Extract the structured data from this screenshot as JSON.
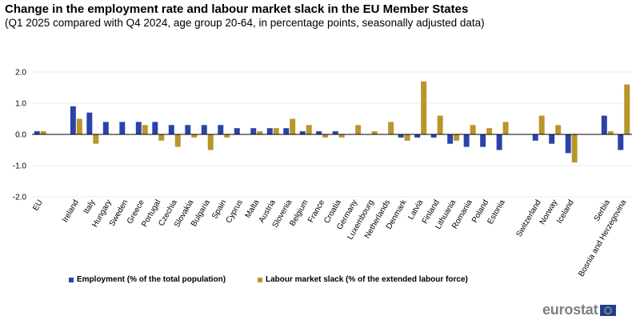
{
  "title": "Change in the employment rate and labour market slack in the EU Member States",
  "subtitle": "(Q1 2025 compared with Q4 2024, age group 20-64, in percentage points, seasonally adjusted data)",
  "logo": {
    "text": "eurostat",
    "flag_icon": "eu-flag-icon"
  },
  "colors": {
    "employment": "#2a43a8",
    "slack": "#b8962a",
    "grid": "#d9d9d9",
    "axis": "#000000",
    "flag": "#1f3f9a",
    "stars": "#ffd200"
  },
  "legend": [
    {
      "label": "Employment (% of the total population)",
      "color": "#2a43a8"
    },
    {
      "label": "Labour market slack (% of the extended labour force)",
      "color": "#b8962a"
    }
  ],
  "chart_data": {
    "type": "bar",
    "title": "Change in the employment rate and labour market slack in the EU Member States",
    "ylim": [
      -2.0,
      2.0
    ],
    "yticks": [
      2.0,
      1.0,
      0.0,
      -1.0,
      -2.0
    ],
    "ytick_labels": [
      "2.0",
      "1.0",
      "0.0",
      "-1.0",
      "-2.0"
    ],
    "grid": true,
    "legend_position": "bottom",
    "categories": [
      "EU",
      "Ireland",
      "Italy",
      "Hungary",
      "Sweden",
      "Greece",
      "Portugal",
      "Czechia",
      "Slovakia",
      "Bulgaria",
      "Spain",
      "Cyprus",
      "Malta",
      "Austria",
      "Slovenia",
      "Belgium",
      "France",
      "Croatia",
      "Germany",
      "Luxembourg",
      "Netherlands",
      "Denmark",
      "Latvia",
      "Finland",
      "Lithuania",
      "Romania",
      "Poland",
      "Estonia",
      "Switzerland",
      "Norway",
      "Iceland",
      "Serbia",
      "Bosnia and Herzegovina"
    ],
    "groups_gap_before": [
      "Ireland",
      "Switzerland",
      "Serbia"
    ],
    "series": [
      {
        "name": "Employment (% of the total population)",
        "values": [
          0.1,
          0.9,
          0.7,
          0.4,
          0.4,
          0.4,
          0.4,
          0.3,
          0.3,
          0.3,
          0.3,
          0.2,
          0.2,
          0.2,
          0.2,
          0.1,
          0.1,
          0.1,
          0.0,
          0.0,
          0.0,
          -0.1,
          -0.1,
          -0.1,
          -0.3,
          -0.4,
          -0.4,
          -0.5,
          -0.2,
          -0.3,
          -0.6,
          0.6,
          -0.5
        ]
      },
      {
        "name": "Labour market slack (% of the extended labour force)",
        "values": [
          0.1,
          0.5,
          -0.3,
          0.0,
          0.0,
          0.3,
          -0.2,
          -0.4,
          -0.1,
          -0.5,
          -0.1,
          0.0,
          0.1,
          0.2,
          0.5,
          0.3,
          -0.1,
          -0.1,
          0.3,
          0.1,
          0.4,
          -0.2,
          1.7,
          0.6,
          -0.2,
          0.3,
          0.2,
          0.4,
          0.6,
          0.3,
          -0.9,
          0.1,
          1.6
        ]
      }
    ]
  }
}
